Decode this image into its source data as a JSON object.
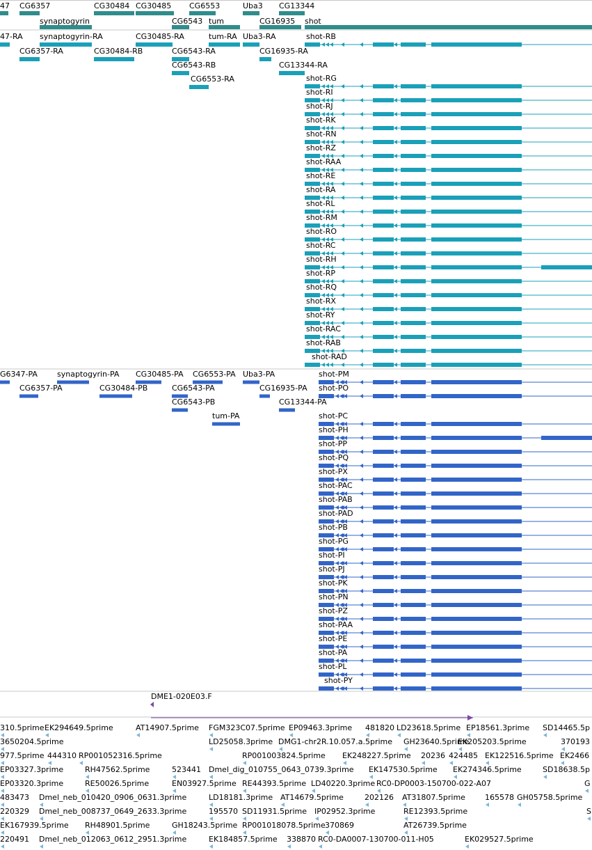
{
  "colors": {
    "gene": "#2f8c8c",
    "transcript": "#1aa0b8",
    "cds": "#3265c8",
    "est_short": "#7bb6d8",
    "est_long": "#7b4aa8",
    "divider": "#c8c8c8"
  },
  "genes": [
    {
      "label": "47"
    },
    {
      "label": "CG6357"
    },
    {
      "label": "synaptogyrin"
    },
    {
      "label": "CG30484"
    },
    {
      "label": "CG30485"
    },
    {
      "label": "CG6543"
    },
    {
      "label": "CG6553"
    },
    {
      "label": "tum"
    },
    {
      "label": "Uba3"
    },
    {
      "label": "CG16935"
    },
    {
      "label": "CG13344"
    },
    {
      "label": "shot"
    }
  ],
  "transcripts_left": [
    {
      "label": "47-RA"
    },
    {
      "label": "synaptogyrin-RA"
    },
    {
      "label": "CG30485-RA"
    },
    {
      "label": "tum-RA"
    },
    {
      "label": "Uba3-RA"
    },
    {
      "label": "CG6357-RA"
    },
    {
      "label": "CG30484-RB"
    },
    {
      "label": "CG6543-RA"
    },
    {
      "label": "CG16935-RA"
    },
    {
      "label": "CG6543-RB"
    },
    {
      "label": "CG13344-RA"
    },
    {
      "label": "CG6553-RA"
    }
  ],
  "shot_transcripts": [
    {
      "label": "shot-RB"
    },
    {
      "label": "shot-RG"
    },
    {
      "label": "shot-RI"
    },
    {
      "label": "shot-RJ"
    },
    {
      "label": "shot-RK"
    },
    {
      "label": "shot-RN"
    },
    {
      "label": "shot-RZ"
    },
    {
      "label": "shot-RAA"
    },
    {
      "label": "shot-RE"
    },
    {
      "label": "shot-RA"
    },
    {
      "label": "shot-RL"
    },
    {
      "label": "shot-RM"
    },
    {
      "label": "shot-RO"
    },
    {
      "label": "shot-RC"
    },
    {
      "label": "shot-RH"
    },
    {
      "label": "shot-RP"
    },
    {
      "label": "shot-RQ"
    },
    {
      "label": "shot-RX"
    },
    {
      "label": "shot-RY"
    },
    {
      "label": "shot-RAC"
    },
    {
      "label": "shot-RAB"
    },
    {
      "label": "shot-RAD"
    }
  ],
  "proteins_left": [
    {
      "label": "G6347-PA"
    },
    {
      "label": "synaptogyrin-PA"
    },
    {
      "label": "CG30485-PA"
    },
    {
      "label": "CG6553-PA"
    },
    {
      "label": "Uba3-PA"
    },
    {
      "label": "CG6357-PA"
    },
    {
      "label": "CG30484-PB"
    },
    {
      "label": "CG6543-PA"
    },
    {
      "label": "CG16935-PA"
    },
    {
      "label": "CG6543-PB"
    },
    {
      "label": "CG13344-PA"
    },
    {
      "label": "tum-PA"
    }
  ],
  "shot_proteins": [
    {
      "label": "shot-PM"
    },
    {
      "label": "shot-PO"
    },
    {
      "label": "shot-PC"
    },
    {
      "label": "shot-PH"
    },
    {
      "label": "shot-PP"
    },
    {
      "label": "shot-PQ"
    },
    {
      "label": "shot-PX"
    },
    {
      "label": "shot-PAC"
    },
    {
      "label": "shot-PAB"
    },
    {
      "label": "shot-PAD"
    },
    {
      "label": "shot-PB"
    },
    {
      "label": "shot-PG"
    },
    {
      "label": "shot-PI"
    },
    {
      "label": "shot-PJ"
    },
    {
      "label": "shot-PK"
    },
    {
      "label": "shot-PN"
    },
    {
      "label": "shot-PZ"
    },
    {
      "label": "shot-PAA"
    },
    {
      "label": "shot-PE"
    },
    {
      "label": "shot-PA"
    },
    {
      "label": "shot-PL"
    },
    {
      "label": "shot-PY"
    }
  ],
  "clone": {
    "label": "DME1-020E03.F"
  },
  "ests": [
    [
      "310.5prime",
      "EK294649.5prime",
      "AT14907.5prime",
      "FGM323C07.5prime",
      "EP09463.3prime",
      "481820",
      "LD23618.5prime",
      "EP18561.3prime",
      "SD14465.5p"
    ],
    [
      "3650204.5prime",
      "LD25058.3prime",
      "DMG1-chr2R.10.057.a.5prime",
      "GH23640.5prime",
      "EK205203.5prime",
      "370193"
    ],
    [
      "977.5prime",
      "444310",
      "RP001052316.5prime",
      "RP001003824.5prime",
      "EK248227.5prime",
      "20236",
      "424485",
      "EK122516.5prime",
      "EK2466"
    ],
    [
      "EP03327.3prime",
      "RH47562.5prime",
      "523441",
      "Dmel_dig_010755_0643_0739.3prime",
      "EK147530.5prime",
      "EK274346.5prime",
      "SD18638.5p"
    ],
    [
      "EP03320.3prime",
      "RE50026.5prime",
      "EN03927.5prime",
      "RE44393.5prime",
      "LD40220.3prime",
      "RC0-DP0003-150700-022-A07",
      "G"
    ],
    [
      "483473",
      "Dmel_neb_010420_0906_0631.3prime",
      "LD18181.3prime",
      "AT14679.5prime",
      "202126",
      "AT31807.5prime",
      "165578",
      "GH05758.5prime"
    ],
    [
      "220329",
      "Dmel_neb_008737_0649_2633.3prime",
      "195570",
      "SD11931.5prime",
      "IP02952.3prime",
      "RE12393.5prime",
      "S"
    ],
    [
      "EK167939.5prime",
      "RH48901.5prime",
      "GH18243.5prime",
      "RP001018078.5prime",
      "370869",
      "AT26739.5prime"
    ],
    [
      "220491",
      "Dmel_neb_012063_0612_2951.3prime",
      "EK184857.5prime",
      "338870",
      "RC0-DA0007-130700-011-H05",
      "EK029527.5prime"
    ]
  ]
}
